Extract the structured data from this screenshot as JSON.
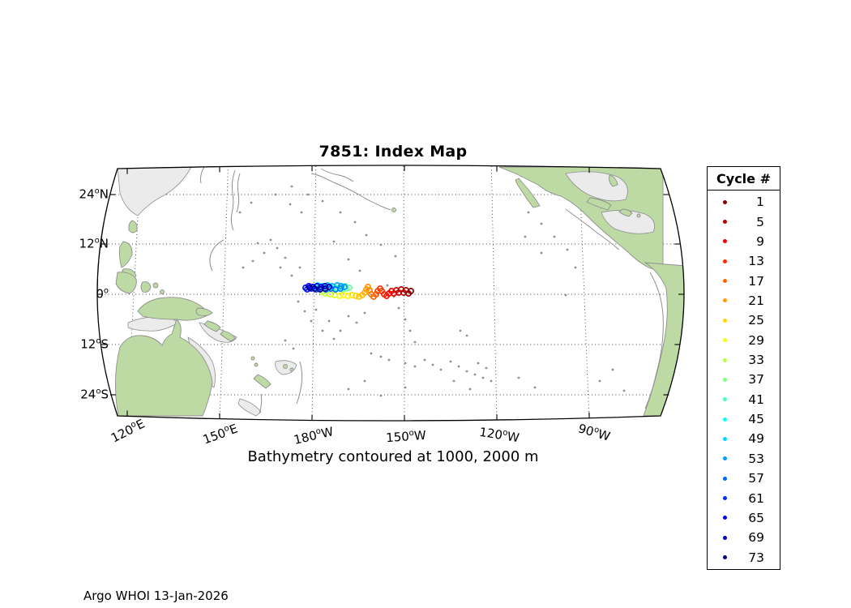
{
  "title": "7851: Index Map",
  "subtitle": "Bathymetry contoured at 1000, 2000 m",
  "footer": "Argo WHOI 13-Jan-2026",
  "legend": {
    "title": "Cycle #",
    "entries": [
      {
        "label": "1",
        "color": "#800000"
      },
      {
        "label": "5",
        "color": "#b80000"
      },
      {
        "label": "9",
        "color": "#f10000"
      },
      {
        "label": "13",
        "color": "#ff2b00"
      },
      {
        "label": "17",
        "color": "#ff6300"
      },
      {
        "label": "21",
        "color": "#ff9c00"
      },
      {
        "label": "25",
        "color": "#ffd500"
      },
      {
        "label": "29",
        "color": "#f1ff0e"
      },
      {
        "label": "33",
        "color": "#b8ff47"
      },
      {
        "label": "37",
        "color": "#80ff80"
      },
      {
        "label": "41",
        "color": "#47ffb8"
      },
      {
        "label": "45",
        "color": "#0efff1"
      },
      {
        "label": "49",
        "color": "#00d5ff"
      },
      {
        "label": "53",
        "color": "#009cff"
      },
      {
        "label": "57",
        "color": "#0063ff"
      },
      {
        "label": "61",
        "color": "#002bff"
      },
      {
        "label": "65",
        "color": "#0000f1"
      },
      {
        "label": "69",
        "color": "#0000b8"
      },
      {
        "label": "73",
        "color": "#000080"
      }
    ]
  },
  "map": {
    "degree_symbol": "o",
    "lat_labels": [
      {
        "value": "24",
        "hemi": "N"
      },
      {
        "value": "12",
        "hemi": "N"
      },
      {
        "value": "0",
        "hemi": ""
      },
      {
        "value": "12",
        "hemi": "S"
      },
      {
        "value": "24",
        "hemi": "S"
      }
    ],
    "lon_labels": [
      {
        "value": "120",
        "hemi": "E"
      },
      {
        "value": "150",
        "hemi": "E"
      },
      {
        "value": "180",
        "hemi": "W"
      },
      {
        "value": "150",
        "hemi": "W"
      },
      {
        "value": "120",
        "hemi": "W"
      },
      {
        "value": "90",
        "hemi": "W"
      }
    ]
  },
  "colors": {
    "background": "#ffffff",
    "land": "#bedaa4",
    "shelf": "#ebebeb",
    "contour": "#8f8f8f",
    "boundary": "#000000"
  },
  "trajectory": {
    "description": "Float 7851 cycle positions, colored by cycle number (reverse-jet, cycle 1 = dark red, cycle 73 = dark blue)",
    "marker": "open-circle",
    "points": [
      [
        1,
        507,
        359
      ],
      [
        2,
        504,
        362
      ],
      [
        3,
        501,
        358
      ],
      [
        4,
        498,
        361
      ],
      [
        5,
        495,
        357
      ],
      [
        6,
        492,
        361
      ],
      [
        7,
        489,
        358
      ],
      [
        8,
        486,
        362
      ],
      [
        9,
        483,
        359
      ],
      [
        10,
        480,
        362
      ],
      [
        11,
        477,
        365
      ],
      [
        12,
        474,
        363
      ],
      [
        13,
        471,
        359
      ],
      [
        14,
        469,
        356
      ],
      [
        15,
        466,
        359
      ],
      [
        16,
        464,
        363
      ],
      [
        17,
        461,
        366
      ],
      [
        18,
        458,
        363
      ],
      [
        19,
        456,
        358
      ],
      [
        20,
        454,
        354
      ],
      [
        21,
        452,
        357
      ],
      [
        22,
        450,
        361
      ],
      [
        23,
        447,
        364
      ],
      [
        24,
        443,
        366
      ],
      [
        25,
        439,
        365
      ],
      [
        26,
        434,
        364
      ],
      [
        27,
        429,
        365
      ],
      [
        28,
        424,
        364
      ],
      [
        29,
        419,
        365
      ],
      [
        30,
        413,
        364
      ],
      [
        31,
        407,
        363
      ],
      [
        32,
        401,
        362
      ],
      [
        33,
        398,
        360
      ],
      [
        34,
        404,
        358
      ],
      [
        35,
        410,
        357
      ],
      [
        36,
        416,
        356
      ],
      [
        37,
        422,
        357
      ],
      [
        38,
        427,
        356
      ],
      [
        39,
        431,
        355
      ],
      [
        40,
        426,
        353
      ],
      [
        41,
        420,
        354
      ],
      [
        42,
        414,
        355
      ],
      [
        43,
        408,
        354
      ],
      [
        44,
        402,
        355
      ],
      [
        45,
        396,
        356
      ],
      [
        46,
        391,
        355
      ],
      [
        47,
        387,
        354
      ],
      [
        48,
        392,
        352
      ],
      [
        49,
        398,
        353
      ],
      [
        50,
        404,
        352
      ],
      [
        51,
        410,
        353
      ],
      [
        52,
        416,
        352
      ],
      [
        53,
        421,
        353
      ],
      [
        54,
        425,
        354
      ],
      [
        55,
        420,
        356
      ],
      [
        56,
        414,
        357
      ],
      [
        57,
        408,
        356
      ],
      [
        58,
        402,
        357
      ],
      [
        59,
        396,
        356
      ],
      [
        60,
        390,
        357
      ],
      [
        61,
        384,
        356
      ],
      [
        62,
        379,
        357
      ],
      [
        63,
        377,
        355
      ],
      [
        64,
        381,
        353
      ],
      [
        65,
        386,
        354
      ],
      [
        66,
        391,
        353
      ],
      [
        67,
        396,
        354
      ],
      [
        68,
        401,
        353
      ],
      [
        69,
        406,
        354
      ],
      [
        70,
        401,
        356
      ],
      [
        71,
        395,
        357
      ],
      [
        72,
        388,
        356
      ],
      [
        73,
        382,
        355
      ]
    ]
  }
}
